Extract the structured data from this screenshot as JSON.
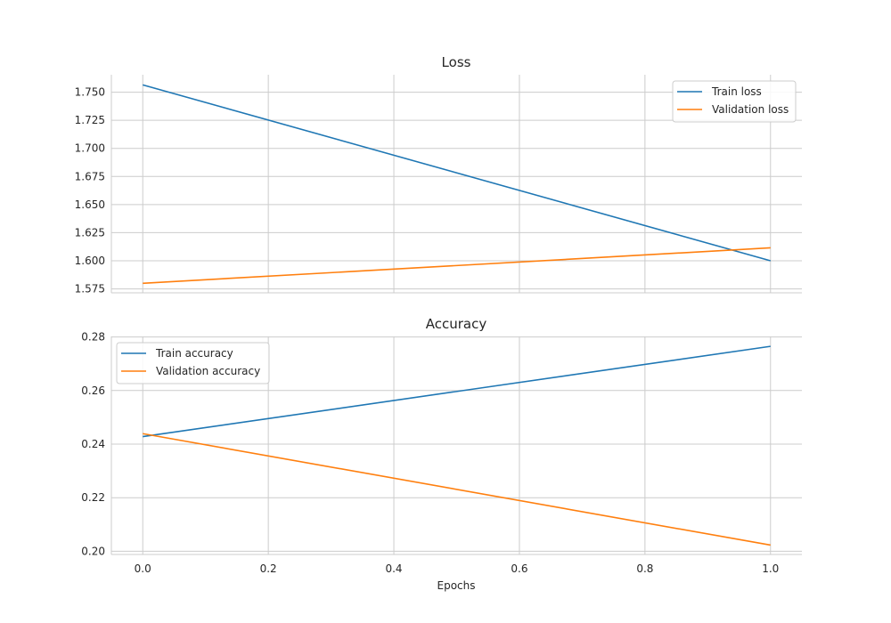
{
  "chart_data": [
    {
      "type": "line",
      "title": "Loss",
      "xlabel": "",
      "ylabel": "",
      "xlim": [
        -0.05,
        1.05
      ],
      "ylim": [
        1.5715,
        1.7655
      ],
      "xticks": [
        0.0,
        0.2,
        0.4,
        0.6,
        0.8,
        1.0
      ],
      "yticks": [
        1.575,
        1.6,
        1.625,
        1.65,
        1.675,
        1.7,
        1.725,
        1.75
      ],
      "ytick_labels": [
        "1.575",
        "1.600",
        "1.625",
        "1.650",
        "1.675",
        "1.700",
        "1.725",
        "1.750"
      ],
      "show_xtick_labels": false,
      "grid": true,
      "legend": "top-right",
      "series": [
        {
          "name": "Train loss",
          "color": "#1f77b4",
          "x": [
            0.0,
            1.0
          ],
          "y": [
            1.7565,
            1.6
          ]
        },
        {
          "name": "Validation loss",
          "color": "#ff7f0e",
          "x": [
            0.0,
            1.0
          ],
          "y": [
            1.58,
            1.6115
          ]
        }
      ]
    },
    {
      "type": "line",
      "title": "Accuracy",
      "xlabel": "Epochs",
      "ylabel": "",
      "xlim": [
        -0.05,
        1.05
      ],
      "ylim": [
        0.1988,
        0.2802
      ],
      "xticks": [
        0.0,
        0.2,
        0.4,
        0.6,
        0.8,
        1.0
      ],
      "xtick_labels": [
        "0.0",
        "0.2",
        "0.4",
        "0.6",
        "0.8",
        "1.0"
      ],
      "yticks": [
        0.2,
        0.22,
        0.24,
        0.26,
        0.28
      ],
      "ytick_labels": [
        "0.20",
        "0.22",
        "0.24",
        "0.26",
        "0.28"
      ],
      "show_xtick_labels": true,
      "grid": true,
      "legend": "top-left",
      "series": [
        {
          "name": "Train accuracy",
          "color": "#1f77b4",
          "x": [
            0.0,
            1.0
          ],
          "y": [
            0.2428,
            0.2765
          ]
        },
        {
          "name": "Validation accuracy",
          "color": "#ff7f0e",
          "x": [
            0.0,
            1.0
          ],
          "y": [
            0.2439,
            0.2023
          ]
        }
      ]
    }
  ]
}
